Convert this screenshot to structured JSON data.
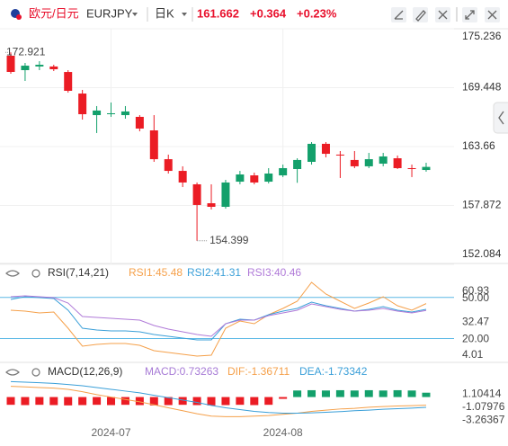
{
  "header": {
    "name": "欧元/日元",
    "code": "EURJPY",
    "period": "日K",
    "price": "161.662",
    "change": "+0.364",
    "change_pct": "+0.23%"
  },
  "chart_data": [
    {
      "type": "candlestick",
      "categories": [
        null,
        null,
        null,
        null,
        null,
        null,
        null,
        "2024-07",
        null,
        null,
        null,
        null,
        null,
        null,
        null,
        null,
        null,
        null,
        null,
        "2024-08",
        null,
        null,
        null,
        null,
        null,
        null,
        null,
        null,
        null,
        null
      ],
      "open": [
        172.585,
        171.17,
        171.53,
        171.53,
        170.99,
        168.87,
        166.75,
        166.84,
        166.75,
        166.58,
        165.25,
        162.42,
        161.27,
        159.95,
        158.09,
        157.74,
        160.21,
        160.83,
        160.21,
        160.83,
        161.45,
        162.16,
        163.93,
        162.87,
        162.34,
        161.72,
        161.98,
        162.51,
        161.54,
        161.36
      ],
      "high": [
        172.921,
        171.88,
        172.05,
        171.7,
        171.17,
        169.23,
        167.64,
        167.99,
        167.64,
        166.75,
        166.75,
        162.87,
        161.72,
        160.13,
        159.95,
        160.39,
        161.27,
        161.1,
        161.54,
        161.89,
        162.51,
        164.1,
        164.1,
        163.22,
        163.22,
        163.04,
        163.04,
        162.78,
        161.89,
        162.07
      ],
      "low": [
        170.818,
        170.11,
        171.17,
        171.08,
        168.96,
        166.31,
        164.99,
        166.58,
        166.4,
        165.16,
        162.16,
        161.01,
        159.68,
        154.399,
        157.48,
        157.56,
        159.95,
        159.95,
        160.04,
        160.66,
        160.1,
        161.89,
        162.6,
        160.57,
        161.54,
        161.54,
        161.72,
        161.45,
        160.66,
        161.19
      ],
      "close": [
        170.995,
        171.61,
        171.7,
        171.26,
        169.14,
        166.84,
        167.2,
        166.93,
        167.11,
        165.43,
        162.42,
        161.27,
        160.13,
        157.92,
        157.74,
        160.13,
        160.92,
        160.13,
        161.01,
        161.54,
        162.34,
        163.93,
        162.95,
        162.78,
        161.72,
        162.42,
        162.69,
        161.54,
        161.45,
        161.662
      ],
      "up_color": "#13a06b",
      "down_color": "#eb1c24",
      "ylim": [
        152.084,
        175.236
      ],
      "yticks": [
        175.236,
        169.448,
        163.66,
        157.872,
        152.084
      ],
      "grid": true
    },
    {
      "type": "line",
      "title": "RSI(7,14,21)",
      "series": [
        {
          "name": "RSI1:45.48",
          "color": "#f5a04a",
          "values": [
            40.65,
            39.99,
            38.68,
            39.34,
            27.56,
            14.48,
            15.79,
            16.44,
            16.44,
            15.13,
            11.21,
            9.9,
            8.59,
            7.28,
            7.94,
            27.56,
            32.8,
            30.83,
            37.38,
            41.96,
            47.19,
            60.93,
            52.42,
            47.19,
            41.96,
            45.88,
            50.46,
            43.92,
            40.65,
            45.48
          ]
        },
        {
          "name": "RSI2:41.31",
          "color": "#3a9fd8",
          "values": [
            48.5,
            50.46,
            49.81,
            49.15,
            40.65,
            27.56,
            26.25,
            25.6,
            25.6,
            24.94,
            22.97,
            21.67,
            20.37,
            19.06,
            19.06,
            30.83,
            34.1,
            33.45,
            37.38,
            39.99,
            41.96,
            46.54,
            43.92,
            41.96,
            39.99,
            41.3,
            43.26,
            40.65,
            39.34,
            41.31
          ]
        },
        {
          "name": "RSI3:40.46",
          "color": "#b07ad8",
          "values": [
            50.46,
            51.12,
            50.46,
            49.81,
            45.88,
            36.07,
            35.41,
            34.76,
            34.1,
            33.45,
            29.53,
            26.91,
            24.94,
            22.97,
            21.67,
            30.83,
            33.45,
            33.45,
            36.72,
            38.68,
            40.65,
            45.23,
            43.26,
            41.3,
            39.99,
            40.65,
            41.96,
            39.99,
            38.68,
            40.46
          ]
        }
      ],
      "ref_line_color": "#5bb8e6",
      "ylim": [
        4.01,
        60.93
      ],
      "yticks": [
        60.93,
        {
          "value": 50,
          "label": "50.00"
        },
        32.47,
        {
          "value": 20,
          "label": "20.00"
        },
        4.01
      ]
    },
    {
      "type": "macd",
      "title": "MACD(12,26,9)",
      "series": [
        {
          "name": "MACD:0.73263",
          "color": "#a77bd6",
          "values": [
            -1.3,
            -1.35,
            -1.3,
            -1.35,
            -1.4,
            -1.35,
            -1.3,
            -1.35,
            -1.3,
            -1.35,
            -1.4,
            -1.35,
            -1.3,
            -1.35,
            -1.4,
            -1.35,
            -1.3,
            -1.35,
            -1.3,
            -0.3,
            1.1,
            1.15,
            1.1,
            1.15,
            1.1,
            1.15,
            1.1,
            1.15,
            1.1,
            0.73263
          ]
        },
        {
          "name": "DIF:-1.36711",
          "color": "#f5a04a",
          "values": [
            1.8,
            1.7,
            1.6,
            1.5,
            1.3,
            0.9,
            0.4,
            0,
            -0.4,
            -0.8,
            -1.3,
            -1.8,
            -2.3,
            -2.8,
            -3.2,
            -3.3,
            -3.3,
            -3.2,
            -3.1,
            -2.9,
            -2.7,
            -2.4,
            -2.2,
            -2.0,
            -1.9,
            -1.7,
            -1.6,
            -1.5,
            -1.45,
            -1.36711
          ]
        },
        {
          "name": "DEA:-1.73342",
          "color": "#3a9fd8",
          "values": [
            2.6,
            2.5,
            2.4,
            2.3,
            2.1,
            1.9,
            1.6,
            1.3,
            1.0,
            0.7,
            0.3,
            -0.1,
            -0.5,
            -0.9,
            -1.4,
            -1.8,
            -2.1,
            -2.4,
            -2.6,
            -2.7,
            -2.7,
            -2.65,
            -2.55,
            -2.45,
            -2.3,
            -2.2,
            -2.05,
            -1.95,
            -1.85,
            -1.73342
          ]
        }
      ],
      "up_color": "#13a06b",
      "down_color": "#eb1c24",
      "ylim": [
        -5.5,
        2.5
      ],
      "yticks": [
        1.10414,
        -1.07976,
        -3.26367
      ]
    }
  ]
}
